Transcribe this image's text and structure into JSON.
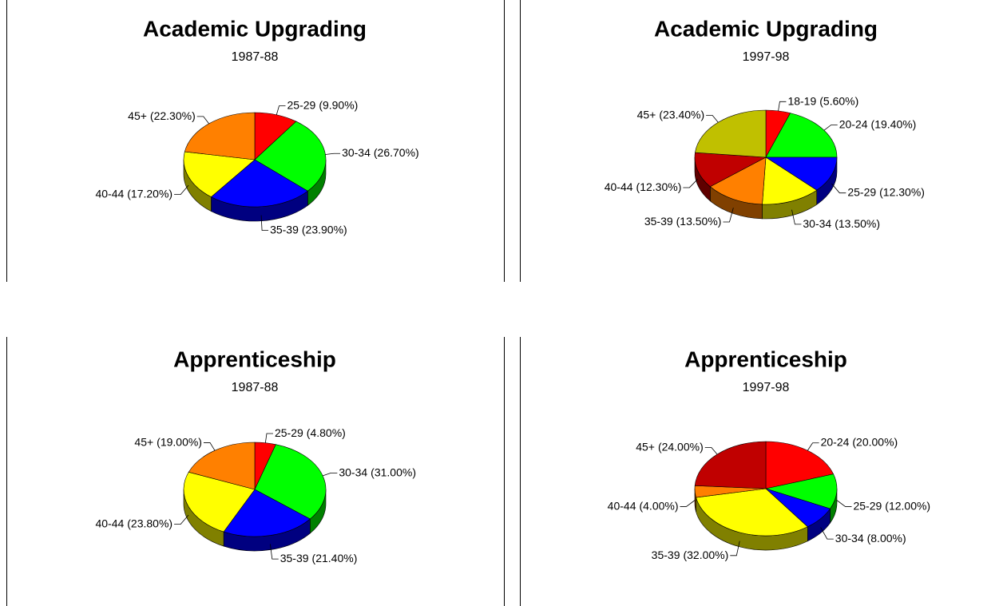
{
  "chart_data": [
    {
      "type": "pie3d",
      "title": "Academic Upgrading",
      "subtitle": "1987-88",
      "categories": [
        "25-29",
        "30-34",
        "35-39",
        "40-44",
        "45+"
      ],
      "values": [
        9.9,
        26.7,
        23.9,
        17.2,
        22.3
      ],
      "value_labels": [
        "(9.90%)",
        "(26.70%)",
        "(23.90%)",
        "(17.20%)",
        "(22.30%)"
      ],
      "colors": [
        "#ff0000",
        "#00ff00",
        "#0000ff",
        "#ffff00",
        "#ff8000"
      ]
    },
    {
      "type": "pie3d",
      "title": "Academic Upgrading",
      "subtitle": "1997-98",
      "categories": [
        "18-19",
        "20-24",
        "25-29",
        "30-34",
        "35-39",
        "40-44",
        "45+"
      ],
      "values": [
        5.6,
        19.4,
        12.3,
        13.5,
        13.5,
        12.3,
        23.4
      ],
      "value_labels": [
        "(5.60%)",
        "(19.40%)",
        "(12.30%)",
        "(13.50%)",
        "(13.50%)",
        "(12.30%)",
        "(23.40%)"
      ],
      "colors": [
        "#ff0000",
        "#00ff00",
        "#0000ff",
        "#ffff00",
        "#ff8000",
        "#c00000",
        "#c0c000"
      ]
    },
    {
      "type": "pie3d",
      "title": "Apprenticeship",
      "subtitle": "1987-88",
      "categories": [
        "25-29",
        "30-34",
        "35-39",
        "40-44",
        "45+"
      ],
      "values": [
        4.8,
        31.0,
        21.4,
        23.8,
        19.0
      ],
      "value_labels": [
        "(4.80%)",
        "(31.00%)",
        "(21.40%)",
        "(23.80%)",
        "(19.00%)"
      ],
      "colors": [
        "#ff0000",
        "#00ff00",
        "#0000ff",
        "#ffff00",
        "#ff8000"
      ]
    },
    {
      "type": "pie3d",
      "title": "Apprenticeship",
      "subtitle": "1997-98",
      "categories": [
        "20-24",
        "25-29",
        "30-34",
        "35-39",
        "40-44",
        "45+"
      ],
      "values": [
        20.0,
        12.0,
        8.0,
        32.0,
        4.0,
        24.0
      ],
      "value_labels": [
        "(20.00%)",
        "(12.00%)",
        "(8.00%)",
        "(32.00%)",
        "(4.00%)",
        "(24.00%)"
      ],
      "colors": [
        "#ff0000",
        "#00ff00",
        "#0000ff",
        "#ffff00",
        "#ff8000",
        "#c00000"
      ]
    }
  ]
}
